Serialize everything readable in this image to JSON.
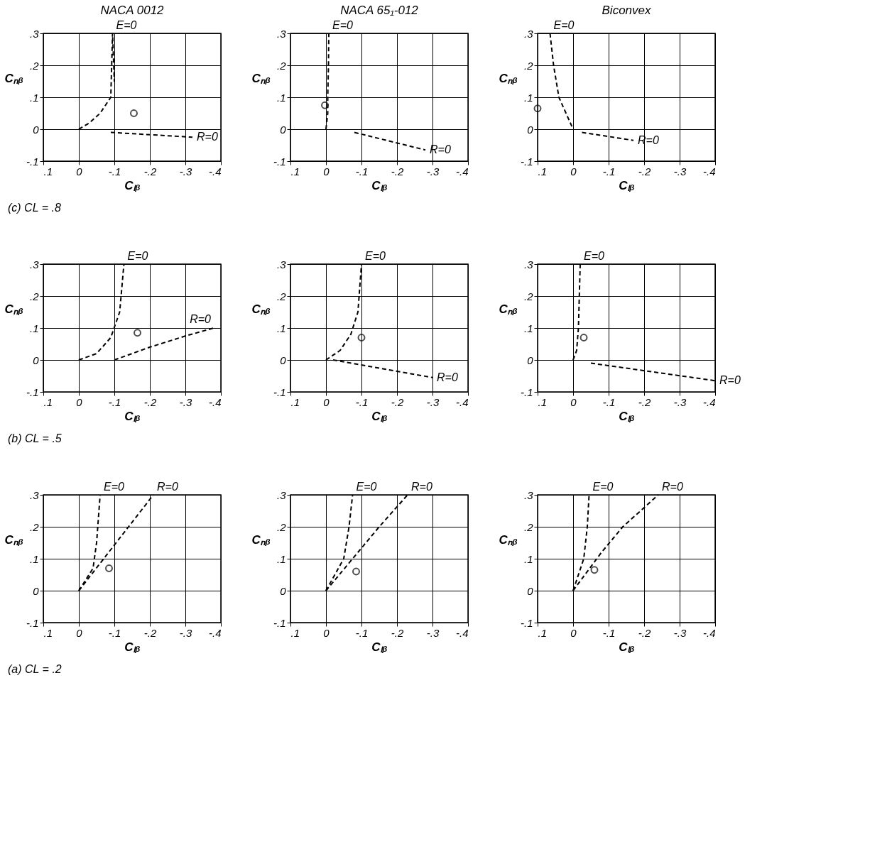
{
  "chart_data": [
    {
      "type": "line",
      "title": "NACA 0012",
      "xlabel": "Cₗᵦ",
      "ylabel": "Cₙᵦ",
      "annotations": [
        "(c) CL = .8"
      ],
      "xlim": [
        0.1,
        -0.4
      ],
      "ylim": [
        -0.1,
        0.3
      ],
      "grid": true,
      "marker": "none",
      "line_style": "dashed",
      "xticks": [
        {
          "value": 0.1,
          "label": ".1"
        },
        0,
        {
          "value": -0.1,
          "label": "-.1"
        },
        {
          "value": -0.2,
          "label": "-.2"
        },
        {
          "value": -0.3,
          "label": "-.3"
        },
        {
          "value": -0.4,
          "label": "-.4"
        }
      ],
      "yticks": [
        {
          "value": -0.1,
          "label": "-.1"
        },
        0,
        {
          "value": 0.1,
          "label": ".1"
        },
        {
          "value": 0.2,
          "label": ".2"
        },
        {
          "value": 0.3,
          "label": ".3"
        }
      ],
      "series": [
        {
          "name": "E=0",
          "color": "#000000",
          "x": [
            0,
            -0.03,
            -0.06,
            -0.09,
            -0.1,
            -0.1,
            -0.095
          ],
          "values": [
            0,
            0.02,
            0.05,
            0.1,
            0.15,
            0.2,
            0.3
          ]
        },
        {
          "name": "R=0",
          "color": "#000000",
          "x": [
            -0.09,
            -0.32
          ],
          "values": [
            -0.01,
            -0.025
          ]
        },
        {
          "type": "scatter",
          "marker": "circle",
          "color": "#000000",
          "x": [
            -0.155
          ],
          "values": [
            0.05
          ]
        }
      ]
    },
    {
      "type": "line",
      "title": "NACA 65₁-012",
      "xlabel": "Cₗᵦ",
      "ylabel": "Cₙᵦ",
      "xlim": [
        0.1,
        -0.4
      ],
      "ylim": [
        -0.1,
        0.3
      ],
      "grid": true,
      "marker": "none",
      "line_style": "dashed",
      "xticks": [
        {
          "value": 0.1,
          "label": ".1"
        },
        0,
        {
          "value": -0.1,
          "label": "-.1"
        },
        {
          "value": -0.2,
          "label": "-.2"
        },
        {
          "value": -0.3,
          "label": "-.3"
        },
        {
          "value": -0.4,
          "label": "-.4"
        }
      ],
      "yticks": [
        {
          "value": -0.1,
          "label": "-.1"
        },
        0,
        {
          "value": 0.1,
          "label": ".1"
        },
        {
          "value": 0.2,
          "label": ".2"
        },
        {
          "value": 0.3,
          "label": ".3"
        }
      ],
      "series": [
        {
          "name": "E=0",
          "color": "#000000",
          "x": [
            0,
            -0.005,
            -0.005,
            -0.007,
            -0.008
          ],
          "values": [
            0,
            0.05,
            0.1,
            0.2,
            0.3
          ]
        },
        {
          "name": "R=0",
          "color": "#000000",
          "x": [
            -0.08,
            -0.28
          ],
          "values": [
            -0.01,
            -0.065
          ]
        },
        {
          "type": "scatter",
          "marker": "circle",
          "color": "#000000",
          "x": [
            0.003
          ],
          "values": [
            0.075
          ]
        }
      ]
    },
    {
      "type": "line",
      "title": "Biconvex",
      "xlabel": "Cₗᵦ",
      "ylabel": "Cₙᵦ",
      "xlim": [
        0.1,
        -0.4
      ],
      "ylim": [
        -0.1,
        0.3
      ],
      "grid": true,
      "marker": "none",
      "line_style": "dashed",
      "xticks": [
        {
          "value": 0.1,
          "label": ".1"
        },
        0,
        {
          "value": -0.1,
          "label": "-.1"
        },
        {
          "value": -0.2,
          "label": "-.2"
        },
        {
          "value": -0.3,
          "label": "-.3"
        },
        {
          "value": -0.4,
          "label": "-.4"
        }
      ],
      "yticks": [
        {
          "value": -0.1,
          "label": "-.1"
        },
        0,
        {
          "value": 0.1,
          "label": ".1"
        },
        {
          "value": 0.2,
          "label": ".2"
        },
        {
          "value": 0.3,
          "label": ".3"
        }
      ],
      "series": [
        {
          "name": "E=0",
          "color": "#000000",
          "x": [
            0,
            0.02,
            0.04,
            0.055,
            0.065
          ],
          "values": [
            0,
            0.05,
            0.1,
            0.2,
            0.3
          ]
        },
        {
          "name": "R=0",
          "color": "#000000",
          "x": [
            -0.025,
            -0.17
          ],
          "values": [
            -0.01,
            -0.035
          ]
        },
        {
          "type": "scatter",
          "marker": "circle",
          "color": "#000000",
          "x": [
            0.1
          ],
          "values": [
            0.065
          ]
        }
      ]
    },
    {
      "type": "line",
      "xlabel": "Cₗᵦ",
      "ylabel": "Cₙᵦ",
      "annotations": [
        "(b) CL = .5"
      ],
      "xlim": [
        0.1,
        -0.4
      ],
      "ylim": [
        -0.1,
        0.3
      ],
      "grid": true,
      "marker": "none",
      "line_style": "dashed",
      "xticks": [
        {
          "value": 0.1,
          "label": ".1"
        },
        0,
        {
          "value": -0.1,
          "label": "-.1"
        },
        {
          "value": -0.2,
          "label": "-.2"
        },
        {
          "value": -0.3,
          "label": "-.3"
        },
        {
          "value": -0.4,
          "label": "-.4"
        }
      ],
      "yticks": [
        {
          "value": -0.1,
          "label": "-.1"
        },
        0,
        {
          "value": 0.1,
          "label": ".1"
        },
        {
          "value": 0.2,
          "label": ".2"
        },
        {
          "value": 0.3,
          "label": ".3"
        }
      ],
      "series": [
        {
          "name": "E=0",
          "color": "#000000",
          "x": [
            0,
            -0.05,
            -0.09,
            -0.115,
            -0.127
          ],
          "values": [
            0,
            0.02,
            0.07,
            0.15,
            0.3
          ]
        },
        {
          "name": "R=0",
          "color": "#000000",
          "x": [
            -0.1,
            -0.2,
            -0.3,
            -0.38
          ],
          "values": [
            0,
            0.04,
            0.075,
            0.1
          ]
        },
        {
          "type": "scatter",
          "marker": "circle",
          "color": "#000000",
          "x": [
            -0.165
          ],
          "values": [
            0.085
          ]
        }
      ]
    },
    {
      "type": "line",
      "xlabel": "Cₗᵦ",
      "ylabel": "Cₙᵦ",
      "xlim": [
        0.1,
        -0.4
      ],
      "ylim": [
        -0.1,
        0.3
      ],
      "grid": true,
      "marker": "none",
      "line_style": "dashed",
      "xticks": [
        {
          "value": 0.1,
          "label": ".1"
        },
        0,
        {
          "value": -0.1,
          "label": "-.1"
        },
        {
          "value": -0.2,
          "label": "-.2"
        },
        {
          "value": -0.3,
          "label": "-.3"
        },
        {
          "value": -0.4,
          "label": "-.4"
        }
      ],
      "yticks": [
        {
          "value": -0.1,
          "label": "-.1"
        },
        0,
        {
          "value": 0.1,
          "label": ".1"
        },
        {
          "value": 0.2,
          "label": ".2"
        },
        {
          "value": 0.3,
          "label": ".3"
        }
      ],
      "series": [
        {
          "name": "E=0",
          "color": "#000000",
          "x": [
            0,
            -0.04,
            -0.07,
            -0.09,
            -0.1
          ],
          "values": [
            0,
            0.03,
            0.08,
            0.15,
            0.3
          ]
        },
        {
          "name": "R=0",
          "color": "#000000",
          "x": [
            -0.02,
            -0.3
          ],
          "values": [
            0,
            -0.055
          ]
        },
        {
          "type": "scatter",
          "marker": "circle",
          "color": "#000000",
          "x": [
            -0.1
          ],
          "values": [
            0.07
          ]
        }
      ]
    },
    {
      "type": "line",
      "xlabel": "Cₗᵦ",
      "ylabel": "Cₙᵦ",
      "xlim": [
        0.1,
        -0.4
      ],
      "ylim": [
        -0.1,
        0.3
      ],
      "grid": true,
      "marker": "none",
      "line_style": "dashed",
      "xticks": [
        {
          "value": 0.1,
          "label": ".1"
        },
        0,
        {
          "value": -0.1,
          "label": "-.1"
        },
        {
          "value": -0.2,
          "label": "-.2"
        },
        {
          "value": -0.3,
          "label": "-.3"
        },
        {
          "value": -0.4,
          "label": "-.4"
        }
      ],
      "yticks": [
        {
          "value": -0.1,
          "label": "-.1"
        },
        0,
        {
          "value": 0.1,
          "label": ".1"
        },
        {
          "value": 0.2,
          "label": ".2"
        },
        {
          "value": 0.3,
          "label": ".3"
        }
      ],
      "series": [
        {
          "name": "E=0",
          "color": "#000000",
          "x": [
            0,
            -0.01,
            -0.015,
            -0.02
          ],
          "values": [
            0,
            0.03,
            0.1,
            0.3
          ]
        },
        {
          "name": "R=0",
          "color": "#000000",
          "x": [
            -0.05,
            -0.4
          ],
          "values": [
            -0.01,
            -0.065
          ]
        },
        {
          "type": "scatter",
          "marker": "circle",
          "color": "#000000",
          "x": [
            -0.03
          ],
          "values": [
            0.07
          ]
        }
      ]
    },
    {
      "type": "line",
      "xlabel": "Cₗᵦ",
      "ylabel": "Cₙᵦ",
      "annotations": [
        "(a) CL = .2"
      ],
      "xlim": [
        0.1,
        -0.4
      ],
      "ylim": [
        -0.1,
        0.3
      ],
      "grid": true,
      "marker": "none",
      "line_style": "dashed",
      "xticks": [
        {
          "value": 0.1,
          "label": ".1"
        },
        0,
        {
          "value": -0.1,
          "label": "-.1"
        },
        {
          "value": -0.2,
          "label": "-.2"
        },
        {
          "value": -0.3,
          "label": "-.3"
        },
        {
          "value": -0.4,
          "label": "-.4"
        }
      ],
      "yticks": [
        {
          "value": -0.1,
          "label": "-.1"
        },
        0,
        {
          "value": 0.1,
          "label": ".1"
        },
        {
          "value": 0.2,
          "label": ".2"
        },
        {
          "value": 0.3,
          "label": ".3"
        }
      ],
      "series": [
        {
          "name": "E=0",
          "color": "#000000",
          "x": [
            0,
            -0.04,
            -0.05,
            -0.06
          ],
          "values": [
            0,
            0.07,
            0.15,
            0.3
          ]
        },
        {
          "name": "R=0",
          "color": "#000000",
          "x": [
            0,
            -0.07,
            -0.14,
            -0.21
          ],
          "values": [
            0,
            0.1,
            0.2,
            0.3
          ]
        },
        {
          "type": "scatter",
          "marker": "circle",
          "color": "#000000",
          "x": [
            -0.085
          ],
          "values": [
            0.07
          ]
        }
      ]
    },
    {
      "type": "line",
      "xlabel": "Cₗᵦ",
      "ylabel": "Cₙᵦ",
      "xlim": [
        0.1,
        -0.4
      ],
      "ylim": [
        -0.1,
        0.3
      ],
      "grid": true,
      "marker": "none",
      "line_style": "dashed",
      "xticks": [
        {
          "value": 0.1,
          "label": ".1"
        },
        0,
        {
          "value": -0.1,
          "label": "-.1"
        },
        {
          "value": -0.2,
          "label": "-.2"
        },
        {
          "value": -0.3,
          "label": "-.3"
        },
        {
          "value": -0.4,
          "label": "-.4"
        }
      ],
      "yticks": [
        {
          "value": -0.1,
          "label": "-.1"
        },
        0,
        {
          "value": 0.1,
          "label": ".1"
        },
        {
          "value": 0.2,
          "label": ".2"
        },
        {
          "value": 0.3,
          "label": ".3"
        }
      ],
      "series": [
        {
          "name": "E=0",
          "color": "#000000",
          "x": [
            0,
            -0.05,
            -0.065,
            -0.075
          ],
          "values": [
            0,
            0.1,
            0.2,
            0.3
          ]
        },
        {
          "name": "R=0",
          "color": "#000000",
          "x": [
            0,
            -0.09,
            -0.15,
            -0.23
          ],
          "values": [
            0,
            0.12,
            0.2,
            0.3
          ]
        },
        {
          "type": "scatter",
          "marker": "circle",
          "color": "#000000",
          "x": [
            -0.085
          ],
          "values": [
            0.06
          ]
        }
      ]
    },
    {
      "type": "line",
      "xlabel": "Cₗᵦ",
      "ylabel": "Cₙᵦ",
      "xlim": [
        0.1,
        -0.4
      ],
      "ylim": [
        -0.1,
        0.3
      ],
      "grid": true,
      "marker": "none",
      "line_style": "dashed",
      "xticks": [
        {
          "value": 0.1,
          "label": ".1"
        },
        0,
        {
          "value": -0.1,
          "label": "-.1"
        },
        {
          "value": -0.2,
          "label": "-.2"
        },
        {
          "value": -0.3,
          "label": "-.3"
        },
        {
          "value": -0.4,
          "label": "-.4"
        }
      ],
      "yticks": [
        {
          "value": -0.1,
          "label": "-.1"
        },
        0,
        {
          "value": 0.1,
          "label": ".1"
        },
        {
          "value": 0.2,
          "label": ".2"
        },
        {
          "value": 0.3,
          "label": ".3"
        }
      ],
      "series": [
        {
          "name": "E=0",
          "color": "#000000",
          "x": [
            0,
            -0.03,
            -0.04,
            -0.045
          ],
          "values": [
            0,
            0.1,
            0.2,
            0.3
          ]
        },
        {
          "name": "R=0",
          "color": "#000000",
          "x": [
            0,
            -0.08,
            -0.14,
            -0.24
          ],
          "values": [
            0,
            0.12,
            0.2,
            0.3
          ]
        },
        {
          "type": "scatter",
          "marker": "circle",
          "color": "#000000",
          "x": [
            -0.06
          ],
          "values": [
            0.065
          ]
        }
      ]
    }
  ]
}
